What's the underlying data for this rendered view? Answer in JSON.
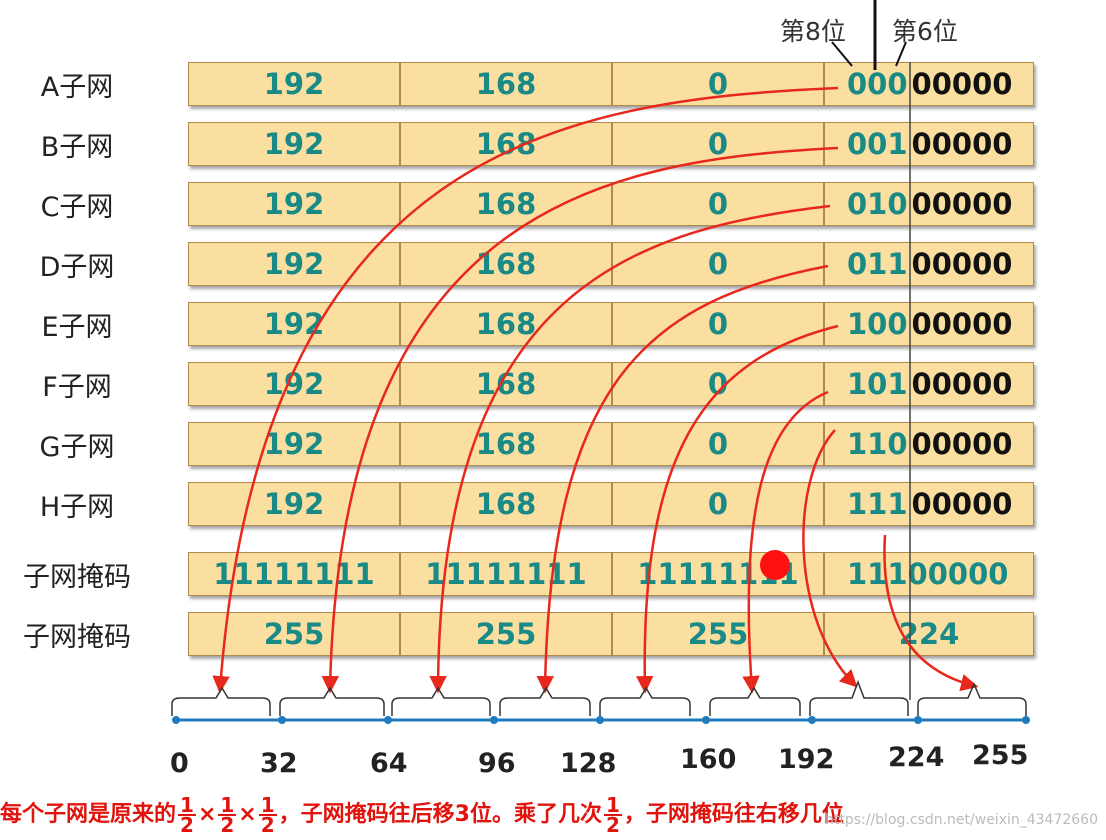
{
  "top_labels": {
    "bit8": "第8位",
    "bit6": "第6位"
  },
  "rows": [
    {
      "label": "A子网",
      "o1": "192",
      "o2": "168",
      "o3": "0",
      "bits": "000",
      "zeros": "00000"
    },
    {
      "label": "B子网",
      "o1": "192",
      "o2": "168",
      "o3": "0",
      "bits": "001",
      "zeros": "00000"
    },
    {
      "label": "C子网",
      "o1": "192",
      "o2": "168",
      "o3": "0",
      "bits": "010",
      "zeros": "00000"
    },
    {
      "label": "D子网",
      "o1": "192",
      "o2": "168",
      "o3": "0",
      "bits": "011",
      "zeros": "00000"
    },
    {
      "label": "E子网",
      "o1": "192",
      "o2": "168",
      "o3": "0",
      "bits": "100",
      "zeros": "00000"
    },
    {
      "label": "F子网",
      "o1": "192",
      "o2": "168",
      "o3": "0",
      "bits": "101",
      "zeros": "00000"
    },
    {
      "label": "G子网",
      "o1": "192",
      "o2": "168",
      "o3": "0",
      "bits": "110",
      "zeros": "00000"
    },
    {
      "label": "H子网",
      "o1": "192",
      "o2": "168",
      "o3": "0",
      "bits": "111",
      "zeros": "00000"
    }
  ],
  "mask_binary": {
    "label": "子网掩码",
    "o1": "11111111",
    "o2": "11111111",
    "o3": "11111111",
    "bits": "111",
    "zeros": "00000"
  },
  "mask_decimal": {
    "label": "子网掩码",
    "o1": "255",
    "o2": "255",
    "o3": "255",
    "o4": "224"
  },
  "scale_ticks": [
    "0",
    "32",
    "64",
    "96",
    "128",
    "160",
    "192",
    "224",
    "255"
  ],
  "caption": {
    "part1": "每个子网是原来的",
    "frac_num": "1",
    "frac_den": "2",
    "times": "×",
    "part2": "，子网掩码往后移3位。乘了几次",
    "part3": "，子网掩码往右移几位"
  },
  "watermark": "https://blog.csdn.net/weixin_43472660"
}
